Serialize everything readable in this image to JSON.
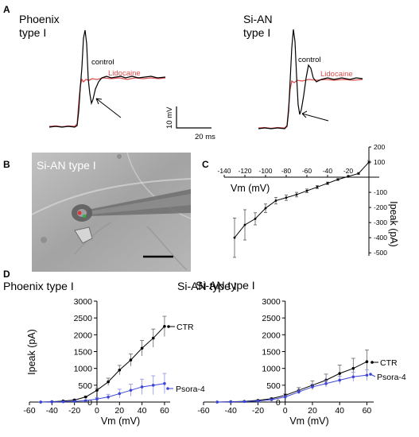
{
  "panels": {
    "A": "A",
    "B": "B",
    "C": "C",
    "D": "D"
  },
  "colors": {
    "control": "#000000",
    "lidocaine": "#d94f4f",
    "psora": "#3b45d6",
    "ctr": "#000000"
  },
  "panel_A": {
    "left": {
      "title_1": "Phoenix",
      "title_2": "type I",
      "control_label": "control",
      "lidocaine_label": "Lidocaine"
    },
    "right": {
      "title_1": "Si-AN",
      "title_2": "type I",
      "control_label": "control",
      "lidocaine_label": "Lidocaine"
    },
    "scalebar": {
      "v_label": "10 mV",
      "t_label": "20 ms"
    }
  },
  "panel_B": {
    "label": "Si-AN type I"
  },
  "chart_data": [
    {
      "id": "C",
      "type": "line",
      "title": "",
      "xlabel": "Vm (mV)",
      "ylabel": "Ipeak (pA)",
      "xlim": [
        -140,
        10
      ],
      "ylim": [
        -520,
        200
      ],
      "xticks": [
        -140,
        -120,
        -100,
        -80,
        -60,
        -40,
        -20
      ],
      "yticks": [
        200,
        100,
        -100,
        -200,
        -300,
        -400,
        -500
      ],
      "x": [
        -130,
        -120,
        -110,
        -100,
        -90,
        -80,
        -70,
        -60,
        -50,
        -40,
        -30,
        -20,
        -10,
        0
      ],
      "y": [
        -400,
        -315,
        -275,
        -205,
        -155,
        -135,
        -115,
        -90,
        -65,
        -40,
        -15,
        5,
        25,
        100
      ],
      "err": [
        130,
        100,
        40,
        28,
        22,
        18,
        15,
        12,
        10,
        8,
        6,
        6,
        6,
        10
      ]
    },
    {
      "id": "D-left",
      "type": "line",
      "title": "Phoenix type I",
      "xlabel": "Vm (mV)",
      "ylabel": "Ipeak (pA)",
      "xlim": [
        -60,
        65
      ],
      "ylim": [
        0,
        3000
      ],
      "xticks": [
        -60,
        -40,
        -20,
        0,
        20,
        40,
        60
      ],
      "yticks": [
        0,
        500,
        1000,
        1500,
        2000,
        2500,
        3000
      ],
      "x": [
        -50,
        -40,
        -30,
        -20,
        -10,
        0,
        10,
        20,
        30,
        40,
        50,
        60
      ],
      "series": [
        {
          "name": "CTR",
          "values": [
            0,
            10,
            30,
            60,
            150,
            350,
            600,
            950,
            1250,
            1600,
            1900,
            2250
          ],
          "err": [
            5,
            8,
            10,
            15,
            30,
            60,
            110,
            140,
            180,
            230,
            270,
            300
          ]
        },
        {
          "name": "Psora-4",
          "values": [
            0,
            5,
            10,
            20,
            40,
            90,
            150,
            250,
            350,
            450,
            500,
            550
          ],
          "err": [
            5,
            5,
            8,
            10,
            20,
            40,
            80,
            130,
            180,
            230,
            280,
            300
          ]
        }
      ]
    },
    {
      "id": "D-right",
      "type": "line",
      "title": "Si-AN type I",
      "xlabel": "Vm (mV)",
      "ylabel": "",
      "xlim": [
        -60,
        65
      ],
      "ylim": [
        0,
        3000
      ],
      "xticks": [
        -60,
        -40,
        -20,
        0,
        20,
        40,
        60
      ],
      "yticks": [
        0,
        500,
        1000,
        1500,
        2000,
        2500,
        3000
      ],
      "x": [
        -50,
        -40,
        -30,
        -20,
        -10,
        0,
        10,
        20,
        30,
        40,
        50,
        60
      ],
      "series": [
        {
          "name": "CTR",
          "values": [
            0,
            10,
            20,
            50,
            100,
            200,
            350,
            500,
            650,
            850,
            1000,
            1200
          ],
          "err": [
            5,
            5,
            10,
            10,
            20,
            40,
            80,
            130,
            180,
            250,
            300,
            350
          ]
        },
        {
          "name": "Psora-4",
          "values": [
            0,
            5,
            15,
            30,
            70,
            150,
            300,
            450,
            550,
            650,
            750,
            800
          ],
          "err": [
            5,
            5,
            8,
            10,
            20,
            40,
            60,
            80,
            100,
            120,
            140,
            160
          ]
        }
      ]
    }
  ]
}
